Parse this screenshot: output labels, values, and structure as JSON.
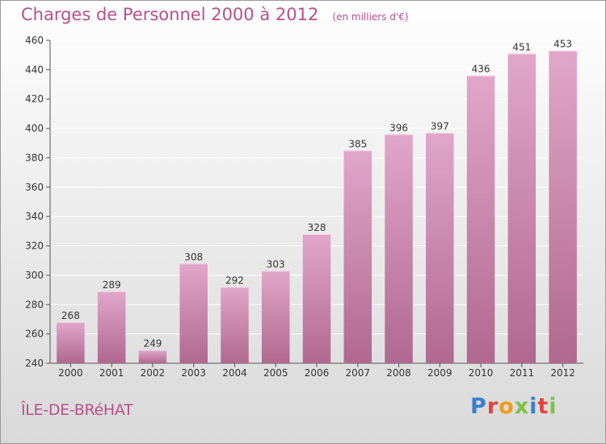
{
  "header": {
    "title": "Charges de Personnel 2000 à 2012",
    "subtitle": "(en milliers d'€)"
  },
  "footer": {
    "commune": "ÎLE-DE-BRéHAT",
    "logo_text": "Proxiti",
    "logo_colors": [
      "#3a7fd0",
      "#e0433b",
      "#f29a1c",
      "#7cc243",
      "#3a7fd0",
      "#e0433b",
      "#7cc243"
    ]
  },
  "colors": {
    "bar_top": "#e2a6cb",
    "bar_bottom": "#b0688f",
    "text_accent": "#b84f8c"
  },
  "chart_data": {
    "type": "bar",
    "title": "Charges de Personnel 2000 à 2012",
    "subtitle": "(en milliers d'€)",
    "categories": [
      "2000",
      "2001",
      "2002",
      "2003",
      "2004",
      "2005",
      "2006",
      "2007",
      "2008",
      "2009",
      "2010",
      "2011",
      "2012"
    ],
    "values": [
      268,
      289,
      249,
      308,
      292,
      303,
      328,
      385,
      396,
      397,
      436,
      451,
      453
    ],
    "ylim": [
      240,
      460
    ],
    "yticks": [
      240,
      260,
      280,
      300,
      320,
      340,
      360,
      380,
      400,
      420,
      440,
      460
    ],
    "grid": true,
    "data_labels": true
  }
}
